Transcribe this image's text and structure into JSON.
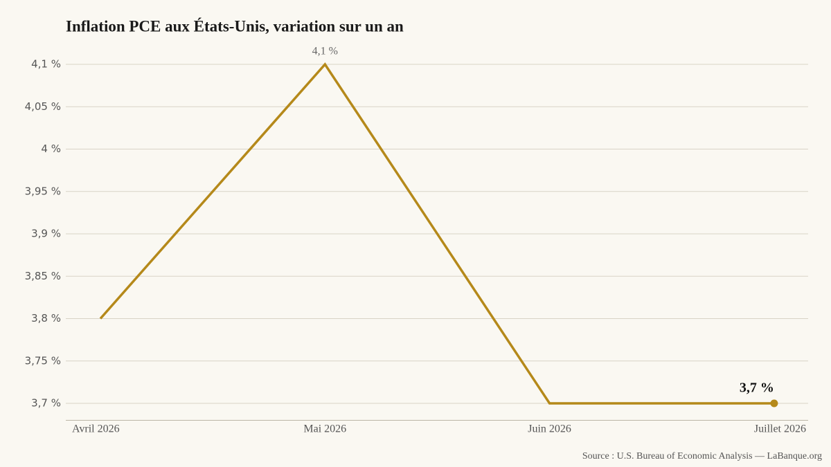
{
  "chart_data": {
    "type": "line",
    "title": "Inflation PCE aux États-Unis, variation sur un an",
    "source": "Source : U.S. Bureau of Economic Analysis — LaBanque.org",
    "categories": [
      "Avril 2026",
      "Mai 2026",
      "Juin 2026",
      "Juillet 2026"
    ],
    "series": [
      {
        "name": "Inflation PCE",
        "color": "#b5891a",
        "values": [
          3.8,
          4.1,
          3.7,
          3.7
        ],
        "value_labels": [
          null,
          "4,1 %",
          null,
          "3,7 %"
        ]
      }
    ],
    "ylim": [
      3.68,
      4.1
    ],
    "yticks": [
      {
        "value": 3.7,
        "label": "3,7 %"
      },
      {
        "value": 3.75,
        "label": "3,75 %"
      },
      {
        "value": 3.8,
        "label": "3,8 %"
      },
      {
        "value": 3.85,
        "label": "3,85 %"
      },
      {
        "value": 3.9,
        "label": "3,9 %"
      },
      {
        "value": 3.95,
        "label": "3,95 %"
      },
      {
        "value": 4,
        "label": "4 %"
      },
      {
        "value": 4.05,
        "label": "4,05 %"
      },
      {
        "value": 4.1,
        "label": "4,1 %"
      }
    ],
    "grid": true
  }
}
